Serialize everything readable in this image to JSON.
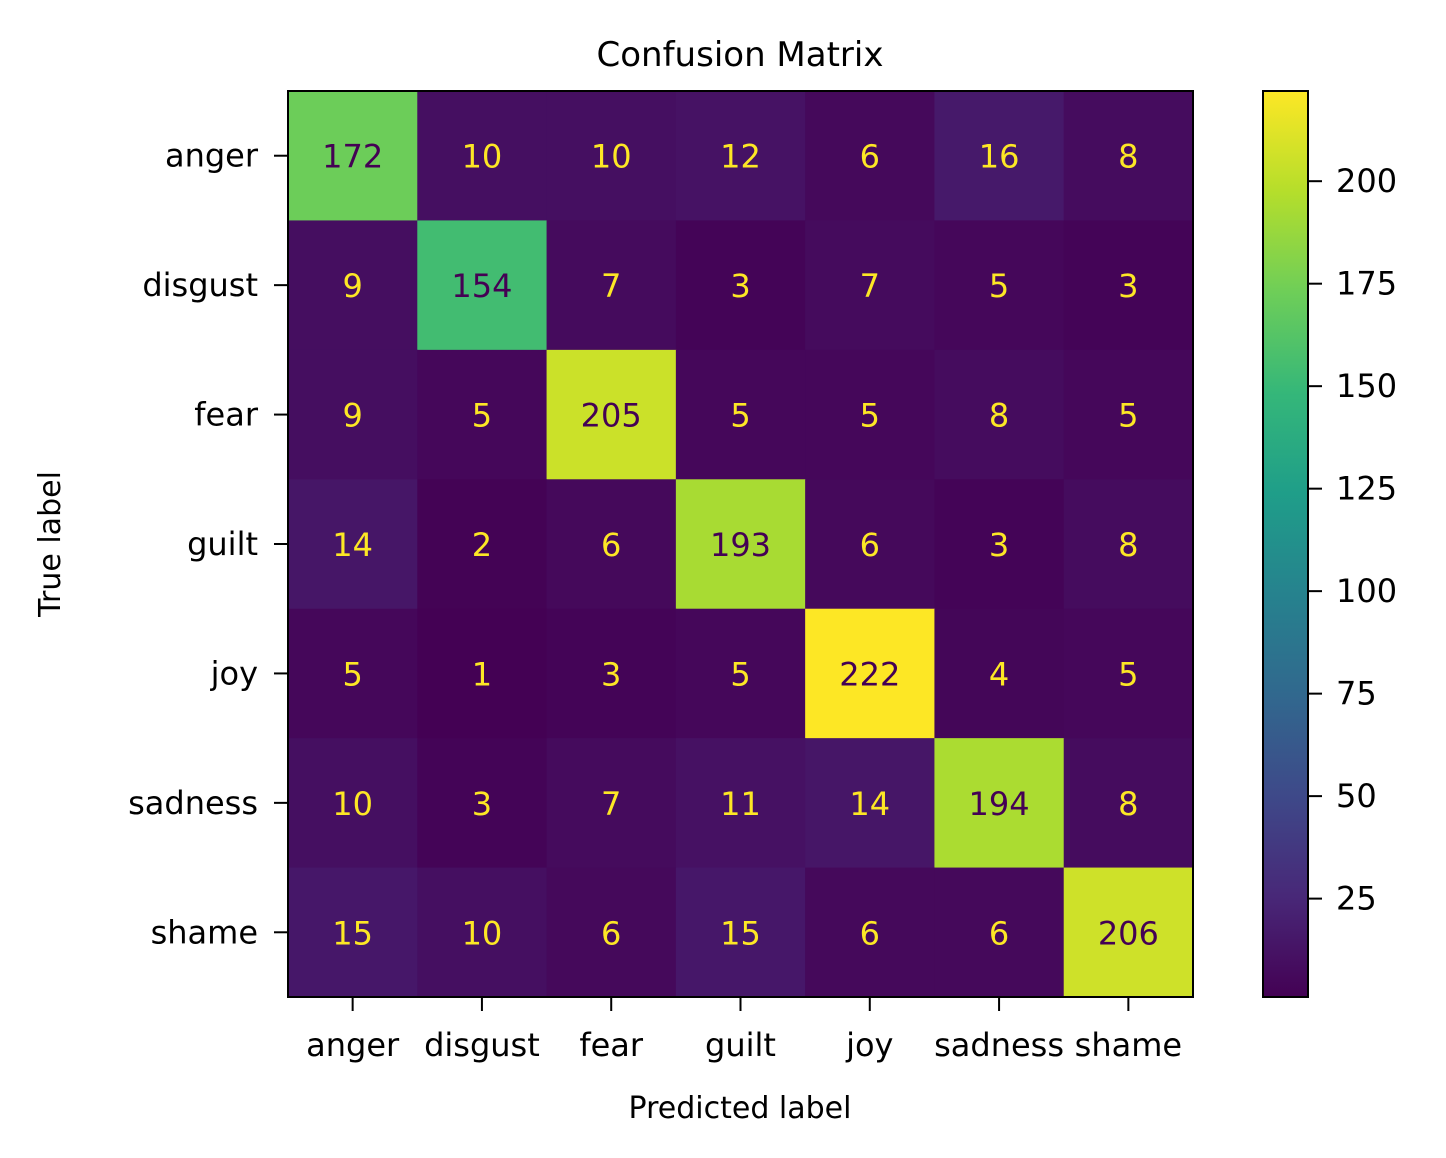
{
  "chart_data": {
    "type": "heatmap",
    "title": "Confusion Matrix",
    "xlabel": "Predicted label",
    "ylabel": "True label",
    "x_categories": [
      "anger",
      "disgust",
      "fear",
      "guilt",
      "joy",
      "sadness",
      "shame"
    ],
    "y_categories": [
      "anger",
      "disgust",
      "fear",
      "guilt",
      "joy",
      "sadness",
      "shame"
    ],
    "values": [
      [
        172,
        10,
        10,
        12,
        6,
        16,
        8
      ],
      [
        9,
        154,
        7,
        3,
        7,
        5,
        3
      ],
      [
        9,
        5,
        205,
        5,
        5,
        8,
        5
      ],
      [
        14,
        2,
        6,
        193,
        6,
        3,
        8
      ],
      [
        5,
        1,
        3,
        5,
        222,
        4,
        5
      ],
      [
        10,
        3,
        7,
        11,
        14,
        194,
        8
      ],
      [
        15,
        10,
        6,
        15,
        6,
        6,
        206
      ]
    ],
    "colormap": "viridis",
    "vmin": 1,
    "vmax": 222,
    "colorbar_ticks": [
      25,
      50,
      75,
      100,
      125,
      150,
      175,
      200
    ],
    "text_color_low": "#fde725",
    "text_color_high": "#440154"
  }
}
